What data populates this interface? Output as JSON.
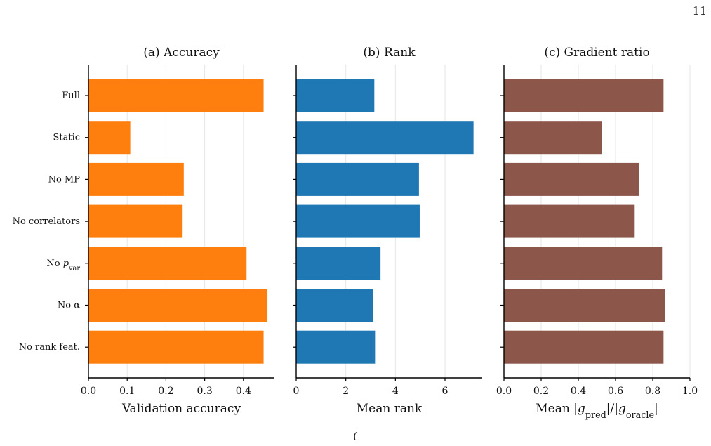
{
  "page_number": "11",
  "caption_fragment": "(",
  "chart_data": [
    {
      "type": "bar",
      "orientation": "horizontal",
      "title": "(a) Accuracy",
      "xlabel": "Validation accuracy",
      "ylabel": "",
      "categories": [
        "Full",
        "Static",
        "No MP",
        "No correlators",
        "No p_var",
        "No α",
        "No rank feat."
      ],
      "values": [
        0.452,
        0.108,
        0.246,
        0.243,
        0.408,
        0.462,
        0.452
      ],
      "xlim": [
        0,
        0.48
      ],
      "xticks": [
        0.0,
        0.1,
        0.2,
        0.3,
        0.4
      ],
      "xtick_labels": [
        "0.0",
        "0.1",
        "0.2",
        "0.3",
        "0.4"
      ],
      "color": "#ff7f0e",
      "grid": "vertical"
    },
    {
      "type": "bar",
      "orientation": "horizontal",
      "title": "(b) Rank",
      "xlabel": "Mean rank",
      "ylabel": "",
      "categories": [
        "Full",
        "Static",
        "No MP",
        "No correlators",
        "No p_var",
        "No α",
        "No rank feat."
      ],
      "values": [
        3.15,
        7.15,
        4.95,
        4.98,
        3.4,
        3.1,
        3.18
      ],
      "xlim": [
        0,
        7.5
      ],
      "xticks": [
        0,
        2,
        4,
        6
      ],
      "xtick_labels": [
        "0",
        "2",
        "4",
        "6"
      ],
      "color": "#1f77b4",
      "grid": "vertical"
    },
    {
      "type": "bar",
      "orientation": "horizontal",
      "title": "(c) Gradient ratio",
      "xlabel": "Mean |g_pred|/|g_oracle|",
      "ylabel": "",
      "categories": [
        "Full",
        "Static",
        "No MP",
        "No correlators",
        "No p_var",
        "No α",
        "No rank feat."
      ],
      "values": [
        0.858,
        0.525,
        0.725,
        0.703,
        0.85,
        0.865,
        0.858
      ],
      "xlim": [
        0,
        1.0
      ],
      "xticks": [
        0.0,
        0.2,
        0.4,
        0.6,
        0.8,
        1.0
      ],
      "xtick_labels": [
        "0.0",
        "0.2",
        "0.4",
        "0.6",
        "0.8",
        "1.0"
      ],
      "color": "#8c564b",
      "grid": "vertical"
    }
  ]
}
